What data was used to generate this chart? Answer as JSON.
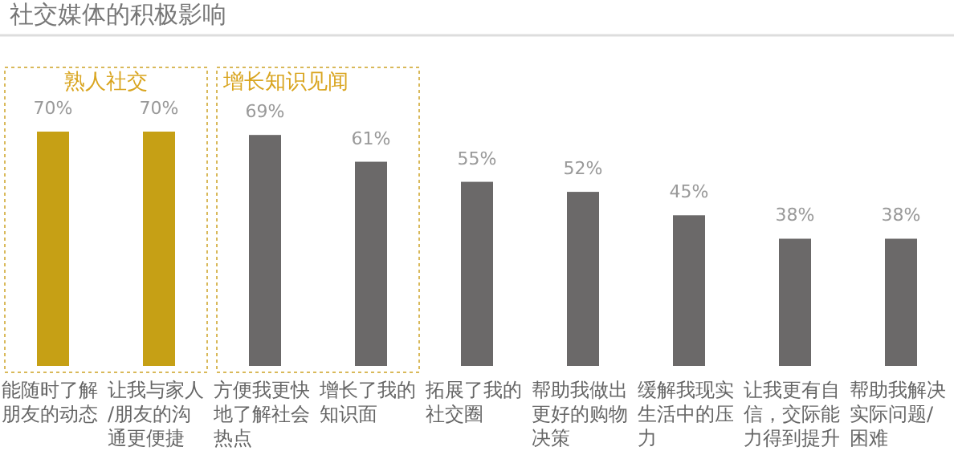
{
  "chart_data": {
    "type": "bar",
    "title": "社交媒体的积极影响",
    "categories": [
      "能随时了解朋友的动态",
      "让我与家人/朋友的沟通更便捷",
      "方便我更快地了解社会热点",
      "增长了我的知识面",
      "拓展了我的社交圈",
      "帮助我做出更好的购物决策",
      "缓解我现实生活中的压力",
      "让我更有自信，交际能力得到提升",
      "帮助我解决实际问题/困难"
    ],
    "values": [
      70,
      70,
      69,
      61,
      55,
      52,
      45,
      38,
      38
    ],
    "value_labels": [
      "70%",
      "70%",
      "69%",
      "61%",
      "55%",
      "52%",
      "45%",
      "38%",
      "38%"
    ],
    "colors": [
      "#c6a015",
      "#c6a015",
      "#6b6969",
      "#6b6969",
      "#6b6969",
      "#6b6969",
      "#6b6969",
      "#6b6969",
      "#6b6969"
    ],
    "annotations": [
      "熟人社交",
      "增长知识见闻"
    ]
  }
}
